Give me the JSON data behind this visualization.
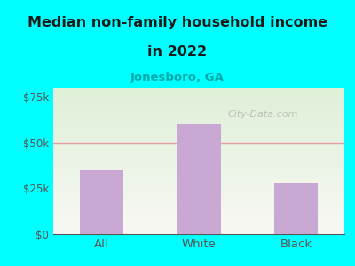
{
  "categories": [
    "All",
    "White",
    "Black"
  ],
  "values": [
    35000,
    60000,
    28000
  ],
  "bar_color": "#C9A8D4",
  "title_line1": "Median non-family household income",
  "title_line2": "in 2022",
  "subtitle": "Jonesboro, GA",
  "subtitle_color": "#00AAAA",
  "title_color": "#1a1a1a",
  "background_color": "#00FFFF",
  "plot_bg_top": "#dff0d8",
  "plot_bg_bottom": "#f8f8f4",
  "watermark": "City-Data.com",
  "ylim": [
    0,
    80000
  ],
  "yticks": [
    0,
    25000,
    50000,
    75000
  ],
  "ytick_labels": [
    "$0",
    "$25k",
    "$50k",
    "$75k"
  ],
  "grid_color": "#e8a0a0",
  "axis_color": "#555555",
  "tick_color": "#555555"
}
